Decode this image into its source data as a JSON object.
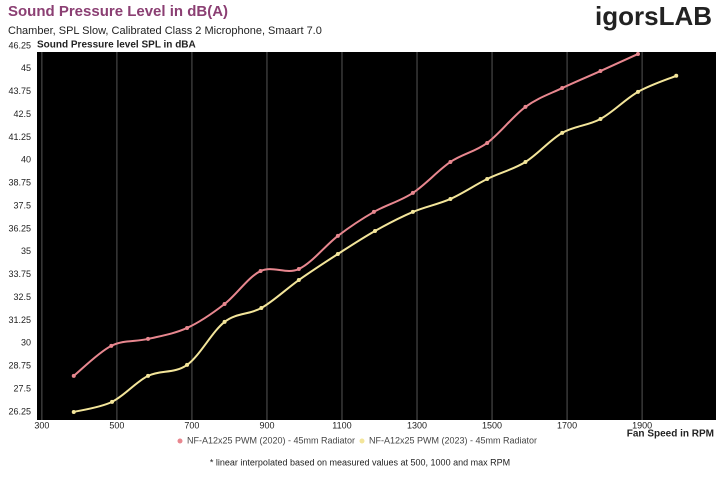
{
  "chart_data": {
    "type": "line",
    "title": "Sound Pressure Level in dB(A)",
    "subtitle": "Chamber, SPL Slow, Calibrated Class 2 Microphone, Smaart 7.0",
    "logo": "igorsLAB",
    "y_label": "Sound Pressure level SPL in dBA",
    "x_label": "Fan Speed in RPM",
    "footnote": "* linear interpolated based on measured values at 500, 1000 and max RPM",
    "xlim": [
      287,
      2097
    ],
    "xticks": [
      300,
      500,
      700,
      900,
      1100,
      1300,
      1500,
      1700,
      1900
    ],
    "ylim": [
      25.81,
      45.92
    ],
    "yticks": [
      26.25,
      27.5,
      28.75,
      30,
      31.25,
      32.5,
      33.75,
      35,
      36.25,
      37.5,
      38.75,
      40,
      41.25,
      42.5,
      43.75,
      45,
      46.25
    ],
    "grid": "x",
    "series": [
      {
        "name": "NF-A12x25 PWM (2020) - 45mm Radiator",
        "color": "#e8878f",
        "x": [
          385,
          485,
          583,
          687,
          787,
          883,
          985,
          1089,
          1185,
          1289,
          1389,
          1487,
          1589,
          1687,
          1789,
          1889
        ],
        "values": [
          28.22,
          29.86,
          30.24,
          30.84,
          32.15,
          33.95,
          34.06,
          35.87,
          37.18,
          38.22,
          39.91,
          40.95,
          42.92,
          43.95,
          44.88,
          45.81
        ]
      },
      {
        "name": "NF-A12x25 PWM (2023) - 45mm Radiator",
        "color": "#f3e59a",
        "x": [
          385,
          487,
          583,
          687,
          787,
          885,
          985,
          1089,
          1188,
          1289,
          1389,
          1487,
          1589,
          1687,
          1789,
          1889,
          1991
        ],
        "values": [
          26.25,
          26.8,
          28.22,
          28.82,
          31.17,
          31.93,
          33.46,
          34.88,
          36.14,
          37.18,
          37.89,
          38.98,
          39.91,
          41.5,
          42.26,
          43.74,
          44.62
        ]
      }
    ]
  }
}
